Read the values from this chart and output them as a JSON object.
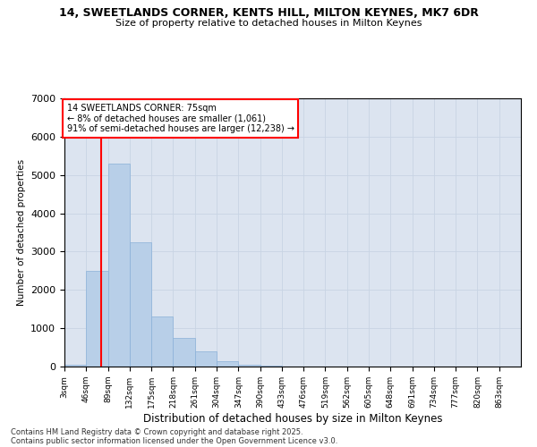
{
  "title_line1": "14, SWEETLANDS CORNER, KENTS HILL, MILTON KEYNES, MK7 6DR",
  "title_line2": "Size of property relative to detached houses in Milton Keynes",
  "xlabel": "Distribution of detached houses by size in Milton Keynes",
  "ylabel": "Number of detached properties",
  "bar_color": "#b8cfe8",
  "bar_edge_color": "#8ab0d8",
  "grid_color": "#c8d4e4",
  "background_color": "#dce4f0",
  "categories": [
    "3sqm",
    "46sqm",
    "89sqm",
    "132sqm",
    "175sqm",
    "218sqm",
    "261sqm",
    "304sqm",
    "347sqm",
    "390sqm",
    "433sqm",
    "476sqm",
    "519sqm",
    "562sqm",
    "605sqm",
    "648sqm",
    "691sqm",
    "734sqm",
    "777sqm",
    "820sqm",
    "863sqm"
  ],
  "bin_edges": [
    3,
    46,
    89,
    132,
    175,
    218,
    261,
    304,
    347,
    390,
    433,
    476,
    519,
    562,
    605,
    648,
    691,
    734,
    777,
    820,
    863
  ],
  "values": [
    50,
    2500,
    5300,
    3250,
    1300,
    750,
    400,
    130,
    50,
    30,
    0,
    0,
    0,
    0,
    0,
    0,
    0,
    0,
    0,
    0,
    0
  ],
  "redline_x": 75,
  "annotation_text": "14 SWEETLANDS CORNER: 75sqm\n← 8% of detached houses are smaller (1,061)\n91% of semi-detached houses are larger (12,238) →",
  "ylim": [
    0,
    7000
  ],
  "yticks": [
    0,
    1000,
    2000,
    3000,
    4000,
    5000,
    6000,
    7000
  ],
  "footer_line1": "Contains HM Land Registry data © Crown copyright and database right 2025.",
  "footer_line2": "Contains public sector information licensed under the Open Government Licence v3.0."
}
